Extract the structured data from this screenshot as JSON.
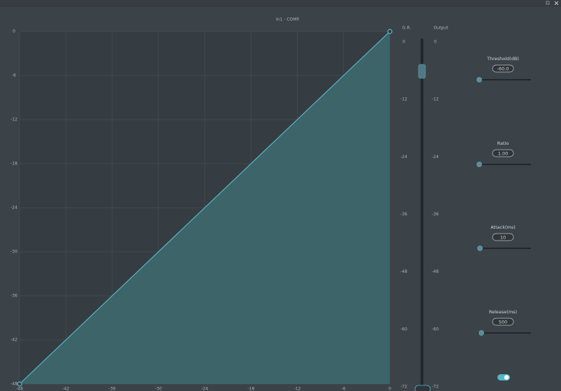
{
  "window": {
    "title": "In1 - COMP."
  },
  "graph": {
    "y_labels": [
      "0",
      "-6",
      "-12",
      "-18",
      "-24",
      "-30",
      "-36",
      "-42",
      "-48"
    ],
    "x_labels": [
      "-48",
      "-42",
      "-36",
      "-30",
      "-24",
      "-18",
      "-12",
      "-6",
      "0"
    ]
  },
  "meters": {
    "gr_label": "G.R.",
    "output_label": "Output",
    "scale": [
      "0",
      "-12",
      "-24",
      "-36",
      "-48",
      "-60",
      "-72"
    ]
  },
  "controls": [
    {
      "label": "Threshold(dB)",
      "value": "-60.0"
    },
    {
      "label": "Ratio",
      "value": "1.00"
    },
    {
      "label": "Attack(ms)",
      "value": "10"
    },
    {
      "label": "Release(ms)",
      "value": "500"
    }
  ]
}
